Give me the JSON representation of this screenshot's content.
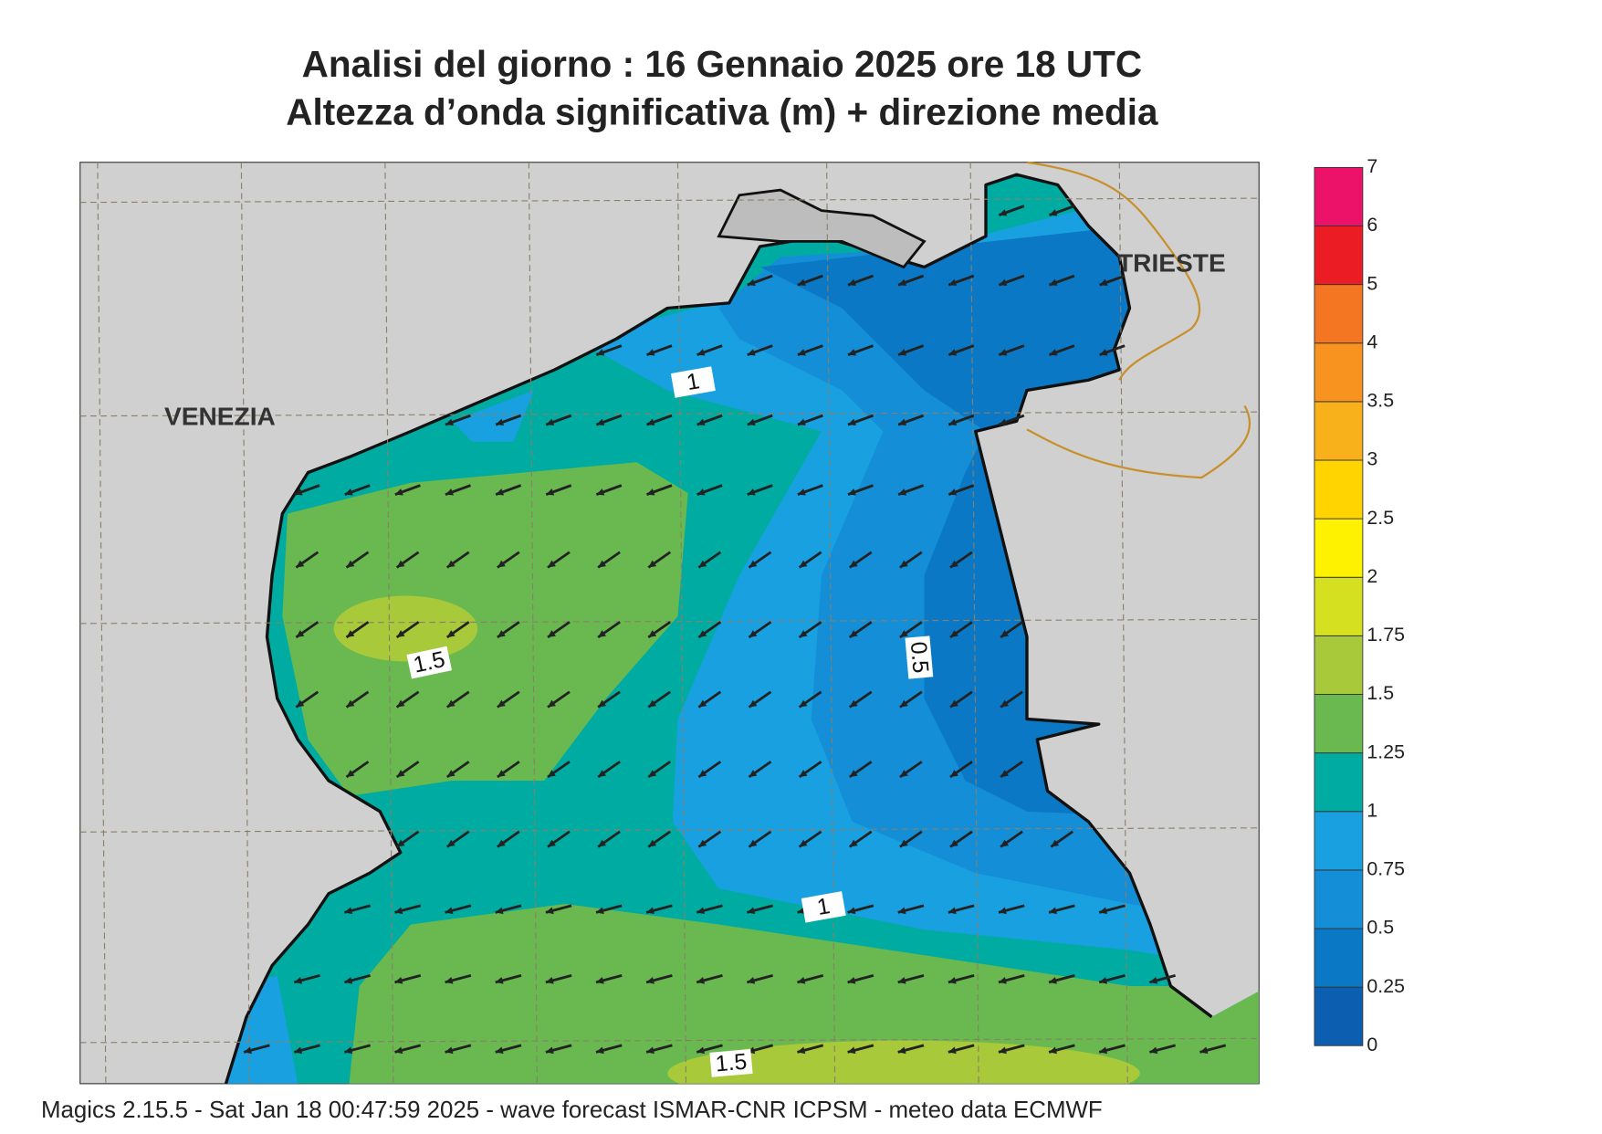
{
  "header": {
    "title": [
      "Analisi del giorno :  16  Gennaio  2025   ore 18 UTC",
      "Altezza d’onda significativa (m) + direzione media"
    ]
  },
  "map": {
    "cities": [
      "VENEZIA",
      "TRIESTE"
    ],
    "contour_labels": [
      "1",
      "1.5",
      "0.5",
      "1",
      "1.5"
    ]
  },
  "colorbar": {
    "levels": [
      0,
      0.25,
      0.5,
      0.75,
      1,
      1.25,
      1.5,
      1.75,
      2,
      2.5,
      3,
      3.5,
      4,
      5,
      6,
      7
    ],
    "colors": [
      "#0c5fb0",
      "#0a78c4",
      "#148ed6",
      "#18a0e0",
      "#00aca2",
      "#69b950",
      "#a8c93a",
      "#d5e020",
      "#fff200",
      "#ffd400",
      "#f9b11b",
      "#f7931e",
      "#f47522",
      "#ec1c24",
      "#ec1169"
    ]
  },
  "footer": "Magics 2.15.5 - Sat Jan 18 00:47:59 2025 - wave forecast  ISMAR-CNR  ICPSM - meteo data   ECMWF"
}
